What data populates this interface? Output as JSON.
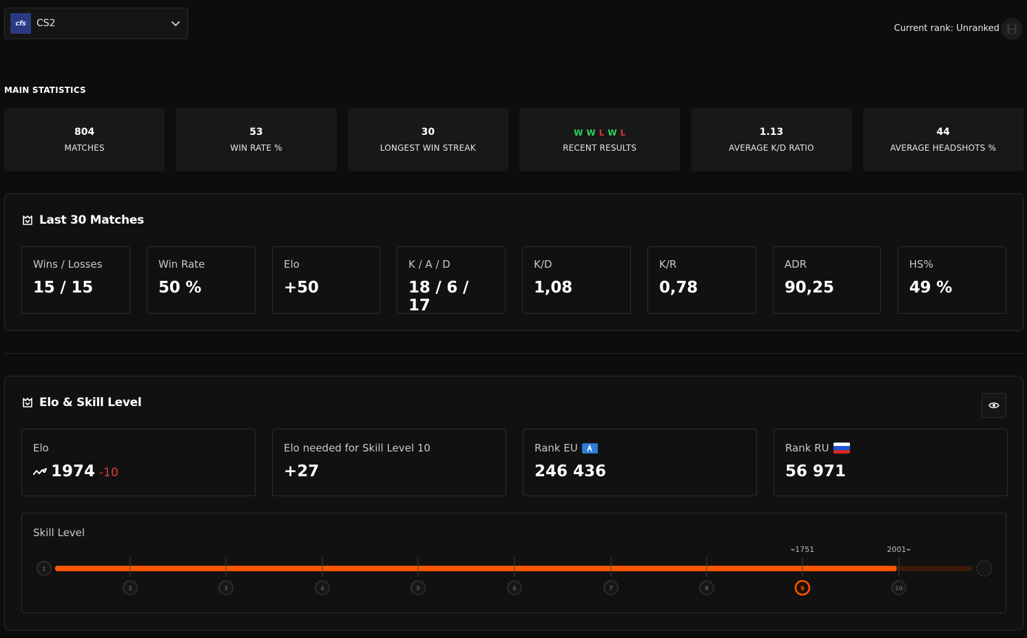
{
  "game": {
    "logo_text": "cfs",
    "name": "CS2"
  },
  "rank": {
    "label": "Current rank: Unranked"
  },
  "main_statistics": {
    "title": "MAIN STATISTICS",
    "items": [
      {
        "value": "804",
        "label": "MATCHES"
      },
      {
        "value": "53",
        "label": "WIN RATE %"
      },
      {
        "value": "30",
        "label": "LONGEST WIN STREAK"
      },
      {
        "value": "",
        "label": "RECENT RESULTS"
      },
      {
        "value": "1.13",
        "label": "AVERAGE K/D RATIO"
      },
      {
        "value": "44",
        "label": "AVERAGE HEADSHOTS %"
      }
    ],
    "recent_results": [
      "W",
      "W",
      "L",
      "W",
      "L"
    ]
  },
  "last30": {
    "title": "Last 30 Matches",
    "cards": [
      {
        "label": "Wins / Losses",
        "value": "15 / 15"
      },
      {
        "label": "Win Rate",
        "value": "50 %"
      },
      {
        "label": "Elo",
        "value": "+50"
      },
      {
        "label": "K / A / D",
        "value": "18 / 6 / 17"
      },
      {
        "label": "K/D",
        "value": "1,08"
      },
      {
        "label": "K/R",
        "value": "0,78"
      },
      {
        "label": "ADR",
        "value": "90,25"
      },
      {
        "label": "HS%",
        "value": "49 %"
      }
    ]
  },
  "elo_skill": {
    "title": "Elo & Skill Level",
    "elo": {
      "label": "Elo",
      "value": "1974",
      "delta": "-10"
    },
    "elo_needed": {
      "label": "Elo needed for Skill Level 10",
      "value": "+27"
    },
    "rank_eu": {
      "label": "Rank EU",
      "value": "246 436"
    },
    "rank_ru": {
      "label": "Rank RU",
      "value": "56 971"
    },
    "skill_level": {
      "title": "Skill Level",
      "current_level": 9,
      "progress_fraction": 0.976,
      "levels": [
        "1",
        "2",
        "3",
        "4",
        "5",
        "6",
        "7",
        "8",
        "9",
        "10"
      ],
      "level9_threshold": "1751",
      "level10_threshold": "2001",
      "accent": "#ff5500"
    }
  }
}
